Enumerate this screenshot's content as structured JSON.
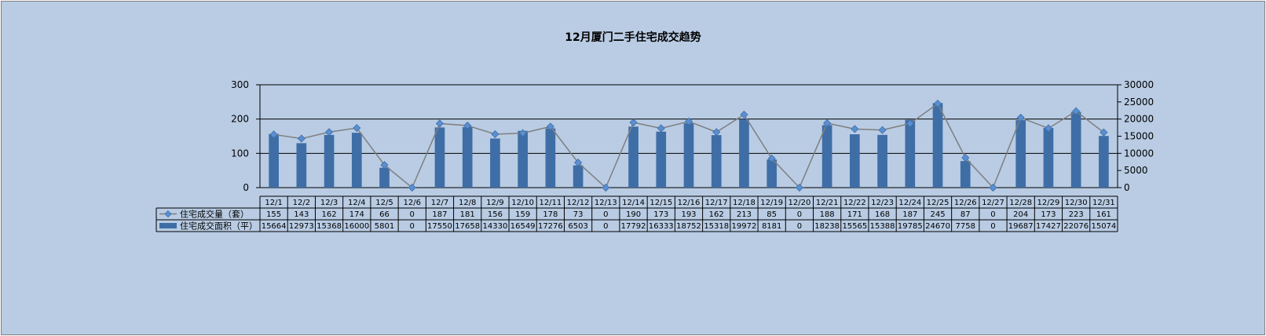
{
  "chart_data": {
    "type": "bar",
    "title": "12月厦门二手住宅成交趋势",
    "categories": [
      "12/1",
      "12/2",
      "12/3",
      "12/4",
      "12/5",
      "12/6",
      "12/7",
      "12/8",
      "12/9",
      "12/10",
      "12/11",
      "12/12",
      "12/13",
      "12/14",
      "12/15",
      "12/16",
      "12/17",
      "12/18",
      "12/19",
      "12/20",
      "12/21",
      "12/22",
      "12/23",
      "12/24",
      "12/25",
      "12/26",
      "12/27",
      "12/28",
      "12/29",
      "12/30",
      "12/31"
    ],
    "series": [
      {
        "name": "住宅成交量（套）",
        "type": "line",
        "axis": "left",
        "values": [
          155,
          143,
          162,
          174,
          66,
          0,
          187,
          181,
          156,
          159,
          178,
          73,
          0,
          190,
          173,
          193,
          162,
          213,
          85,
          0,
          188,
          171,
          168,
          187,
          245,
          87,
          0,
          204,
          173,
          223,
          161
        ]
      },
      {
        "name": "住宅成交面积（平）",
        "type": "bar",
        "axis": "right",
        "values": [
          15664,
          12973,
          15368,
          16000,
          5801,
          0,
          17550,
          17658,
          14330,
          16549,
          17276,
          6503,
          0,
          17792,
          16333,
          18752,
          15318,
          19972,
          8181,
          0,
          18238,
          15565,
          15388,
          19785,
          24670,
          7758,
          0,
          19687,
          17427,
          22076,
          15074
        ]
      }
    ],
    "y_left": {
      "ticks": [
        0,
        100,
        200,
        300
      ],
      "ylim": [
        0,
        300
      ]
    },
    "y_right": {
      "ticks": [
        0,
        5000,
        10000,
        15000,
        20000,
        25000,
        30000
      ],
      "ylim": [
        0,
        30000
      ]
    },
    "legend": "data-table",
    "grid": true,
    "colors": {
      "background": "#b9cce4",
      "bar": "#3f6ea6",
      "line": "#7f7f7f",
      "marker": "#5b8fd1"
    }
  }
}
